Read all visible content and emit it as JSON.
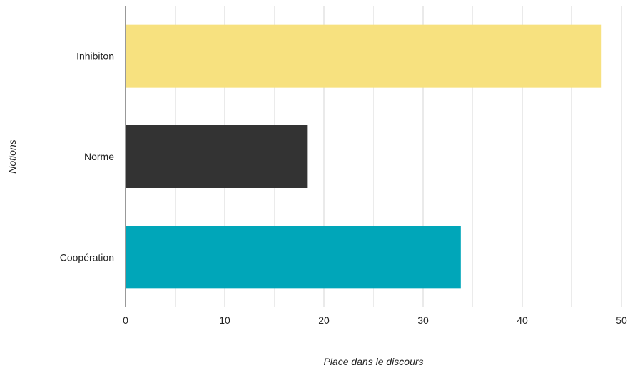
{
  "chart_data": {
    "type": "bar",
    "orientation": "horizontal",
    "title": "",
    "xlabel": "Place dans le discours",
    "ylabel": "Notions",
    "xlim": [
      0,
      50
    ],
    "x_ticks": [
      "0",
      "10",
      "20",
      "30",
      "40",
      "50"
    ],
    "grid": true,
    "legend": "none",
    "categories": [
      "Inhibiton",
      "Norme",
      "Coopération"
    ],
    "values": [
      48,
      18.3,
      33.8
    ],
    "colors": [
      "#f7e17f",
      "#333333",
      "#00a6b9"
    ]
  }
}
